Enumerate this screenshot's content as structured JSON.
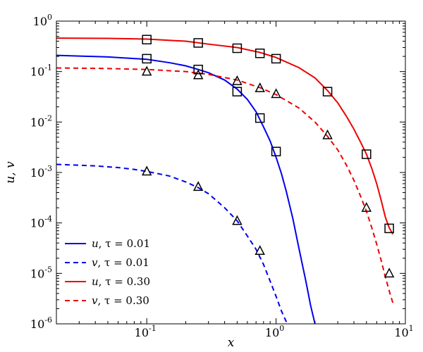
{
  "chart_data": {
    "type": "line",
    "title": "",
    "xlabel": "x",
    "ylabel": "u, v",
    "xscale": "log",
    "yscale": "log",
    "xlim": [
      0.02,
      10
    ],
    "ylim": [
      1e-06,
      1
    ],
    "grid": false,
    "legend_position": "lower-left",
    "x_ticks": [
      {
        "value": 0.1,
        "label": "10",
        "exp": "-1"
      },
      {
        "value": 1,
        "label": "10",
        "exp": "0"
      },
      {
        "value": 10,
        "label": "10",
        "exp": "1"
      }
    ],
    "y_ticks": [
      {
        "value": 1e-06,
        "label": "10",
        "exp": "-6"
      },
      {
        "value": 1e-05,
        "label": "10",
        "exp": "-5"
      },
      {
        "value": 0.0001,
        "label": "10",
        "exp": "-4"
      },
      {
        "value": 0.001,
        "label": "10",
        "exp": "-3"
      },
      {
        "value": 0.01,
        "label": "10",
        "exp": "-2"
      },
      {
        "value": 0.1,
        "label": "10",
        "exp": "-1"
      },
      {
        "value": 1,
        "label": "10",
        "exp": "0"
      }
    ],
    "series": [
      {
        "name": "u, τ = 0.01",
        "legend_var": "u",
        "legend_rest": ", τ = 0.01",
        "color": "#0000ee",
        "dash": "solid",
        "marker": "square",
        "curve": [
          [
            0.02,
            0.21
          ],
          [
            0.05,
            0.195
          ],
          [
            0.1,
            0.175
          ],
          [
            0.15,
            0.15
          ],
          [
            0.2,
            0.13
          ],
          [
            0.25,
            0.11
          ],
          [
            0.3,
            0.095
          ],
          [
            0.4,
            0.068
          ],
          [
            0.5,
            0.045
          ],
          [
            0.6,
            0.028
          ],
          [
            0.7,
            0.016
          ],
          [
            0.8,
            0.008
          ],
          [
            0.9,
            0.0042
          ],
          [
            1.0,
            0.002
          ],
          [
            1.1,
            0.00095
          ],
          [
            1.2,
            0.00042
          ],
          [
            1.35,
            0.00012
          ],
          [
            1.5,
            3.2e-05
          ],
          [
            1.7,
            7e-06
          ],
          [
            1.85,
            2.3e-06
          ],
          [
            2.0,
            1e-06
          ]
        ],
        "markers": [
          [
            0.1,
            0.18
          ],
          [
            0.25,
            0.11
          ],
          [
            0.5,
            0.04
          ],
          [
            0.75,
            0.012
          ],
          [
            1.0,
            0.0026
          ]
        ]
      },
      {
        "name": "v, τ = 0.01",
        "legend_var": "v",
        "legend_rest": ", τ = 0.01",
        "color": "#0000ee",
        "dash": "dashed",
        "marker": "triangle",
        "curve": [
          [
            0.02,
            0.00145
          ],
          [
            0.04,
            0.00135
          ],
          [
            0.06,
            0.00125
          ],
          [
            0.08,
            0.00115
          ],
          [
            0.1,
            0.00105
          ],
          [
            0.15,
            0.00085
          ],
          [
            0.2,
            0.00065
          ],
          [
            0.25,
            0.0005
          ],
          [
            0.3,
            0.00038
          ],
          [
            0.4,
            0.0002
          ],
          [
            0.5,
            0.00011
          ],
          [
            0.6,
            5.5e-05
          ],
          [
            0.7,
            3e-05
          ],
          [
            0.8,
            1.5e-05
          ],
          [
            0.9,
            7e-06
          ],
          [
            1.0,
            3.5e-06
          ],
          [
            1.1,
            1.8e-06
          ],
          [
            1.22,
            1e-06
          ]
        ],
        "markers": [
          [
            0.1,
            0.00105
          ],
          [
            0.25,
            0.00052
          ],
          [
            0.5,
            0.00011
          ],
          [
            0.75,
            2.8e-05
          ]
        ]
      },
      {
        "name": "u, τ = 0.30",
        "legend_var": "u",
        "legend_rest": ", τ = 0.30",
        "color": "#ee0000",
        "dash": "solid",
        "marker": "square",
        "curve": [
          [
            0.02,
            0.46
          ],
          [
            0.05,
            0.455
          ],
          [
            0.1,
            0.44
          ],
          [
            0.2,
            0.4
          ],
          [
            0.3,
            0.35
          ],
          [
            0.5,
            0.3
          ],
          [
            0.75,
            0.24
          ],
          [
            1.0,
            0.19
          ],
          [
            1.5,
            0.12
          ],
          [
            2.0,
            0.075
          ],
          [
            2.5,
            0.042
          ],
          [
            3.0,
            0.024
          ],
          [
            3.5,
            0.013
          ],
          [
            4.0,
            0.0072
          ],
          [
            4.5,
            0.004
          ],
          [
            5.0,
            0.0023
          ],
          [
            5.5,
            0.0012
          ],
          [
            6.0,
            0.0006
          ],
          [
            6.5,
            0.00028
          ],
          [
            7.0,
            0.00013
          ],
          [
            7.5,
            8e-05
          ],
          [
            8.0,
            6e-05
          ]
        ],
        "markers": [
          [
            0.1,
            0.43
          ],
          [
            0.25,
            0.37
          ],
          [
            0.5,
            0.29
          ],
          [
            0.75,
            0.23
          ],
          [
            1.0,
            0.18
          ],
          [
            2.5,
            0.04
          ],
          [
            5.0,
            0.0023
          ],
          [
            7.5,
            7.8e-05
          ]
        ]
      },
      {
        "name": "v, τ = 0.30",
        "legend_var": "v",
        "legend_rest": ", τ = 0.30",
        "color": "#ee0000",
        "dash": "dashed",
        "marker": "triangle",
        "curve": [
          [
            0.02,
            0.118
          ],
          [
            0.05,
            0.115
          ],
          [
            0.1,
            0.11
          ],
          [
            0.2,
            0.1
          ],
          [
            0.3,
            0.088
          ],
          [
            0.5,
            0.068
          ],
          [
            0.75,
            0.048
          ],
          [
            1.0,
            0.035
          ],
          [
            1.5,
            0.019
          ],
          [
            2.0,
            0.01
          ],
          [
            2.5,
            0.0052
          ],
          [
            3.0,
            0.0028
          ],
          [
            3.5,
            0.0014
          ],
          [
            4.0,
            0.0007
          ],
          [
            4.5,
            0.00034
          ],
          [
            5.0,
            0.00017
          ],
          [
            5.5,
            8e-05
          ],
          [
            6.0,
            3.8e-05
          ],
          [
            6.5,
            1.8e-05
          ],
          [
            7.0,
            8.5e-06
          ],
          [
            7.5,
            4.5e-06
          ],
          [
            8.0,
            2.6e-06
          ]
        ],
        "markers": [
          [
            0.1,
            0.1
          ],
          [
            0.25,
            0.085
          ],
          [
            0.5,
            0.065
          ],
          [
            0.75,
            0.047
          ],
          [
            1.0,
            0.036
          ],
          [
            2.5,
            0.0055
          ],
          [
            5.0,
            0.0002
          ],
          [
            7.5,
            1e-05
          ]
        ]
      }
    ]
  }
}
